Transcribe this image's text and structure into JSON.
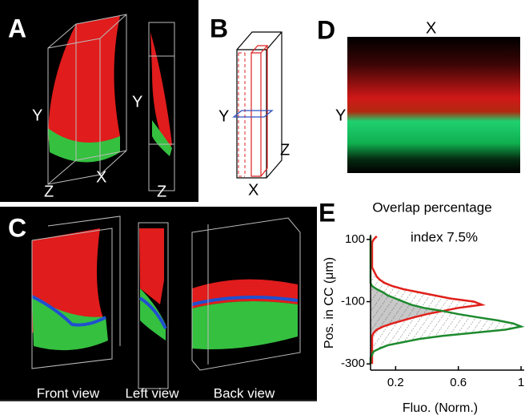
{
  "panels": {
    "A": {
      "label": "A",
      "axes": [
        "Y",
        "X",
        "Z",
        "Y",
        "Z"
      ]
    },
    "B": {
      "label": "B",
      "axes": [
        "Y",
        "Z",
        "X"
      ]
    },
    "C": {
      "label": "C",
      "views": [
        "Front view",
        "Left view",
        "Back view"
      ]
    },
    "D": {
      "label": "D",
      "axes": [
        "X",
        "Y"
      ]
    }
  },
  "chart_data": {
    "type": "line",
    "label": "E",
    "title": "Overlap percentage",
    "subtitle": "index 7.5%",
    "x_label": "Fluo. (Norm.)",
    "y_label": "Pos. in CC (μm)",
    "positions": [
      110,
      100,
      90,
      80,
      70,
      60,
      50,
      40,
      30,
      20,
      10,
      0,
      -10,
      -20,
      -30,
      -40,
      -50,
      -60,
      -70,
      -80,
      -90,
      -100,
      -110,
      -120,
      -130,
      -140,
      -150,
      -160,
      -170,
      -180,
      -190,
      -200,
      -210,
      -220,
      -230,
      -240,
      -250,
      -260,
      -270,
      -280,
      -290,
      -300
    ],
    "series": [
      {
        "color": "#e0201b",
        "values": [
          0.08,
          0.06,
          0.05,
          0.05,
          0.05,
          0.05,
          0.05,
          0.05,
          0.05,
          0.05,
          0.05,
          0.06,
          0.07,
          0.08,
          0.1,
          0.13,
          0.18,
          0.25,
          0.35,
          0.45,
          0.55,
          0.7,
          0.75,
          0.6,
          0.5,
          0.4,
          0.32,
          0.25,
          0.18,
          0.12,
          0.08,
          0.06,
          0.05,
          0.05,
          0.05,
          0.05,
          0.05,
          0.05,
          0.05,
          0.05,
          0.05,
          0.05
        ]
      },
      {
        "color": "#1e8a2e",
        "values": [
          0.04,
          0.04,
          0.04,
          0.04,
          0.04,
          0.04,
          0.04,
          0.04,
          0.04,
          0.04,
          0.04,
          0.04,
          0.04,
          0.04,
          0.04,
          0.04,
          0.05,
          0.08,
          0.12,
          0.15,
          0.2,
          0.25,
          0.3,
          0.38,
          0.5,
          0.6,
          0.72,
          0.85,
          0.95,
          1.0,
          0.9,
          0.7,
          0.5,
          0.35,
          0.25,
          0.15,
          0.1,
          0.06,
          0.05,
          0.04,
          0.04,
          0.04
        ]
      }
    ],
    "xlim": [
      0.04,
      1.02
    ],
    "xticks": [
      0.2,
      0.6,
      1
    ],
    "ylim": [
      -320,
      115
    ],
    "yticks": [
      100,
      -100,
      -300
    ]
  }
}
